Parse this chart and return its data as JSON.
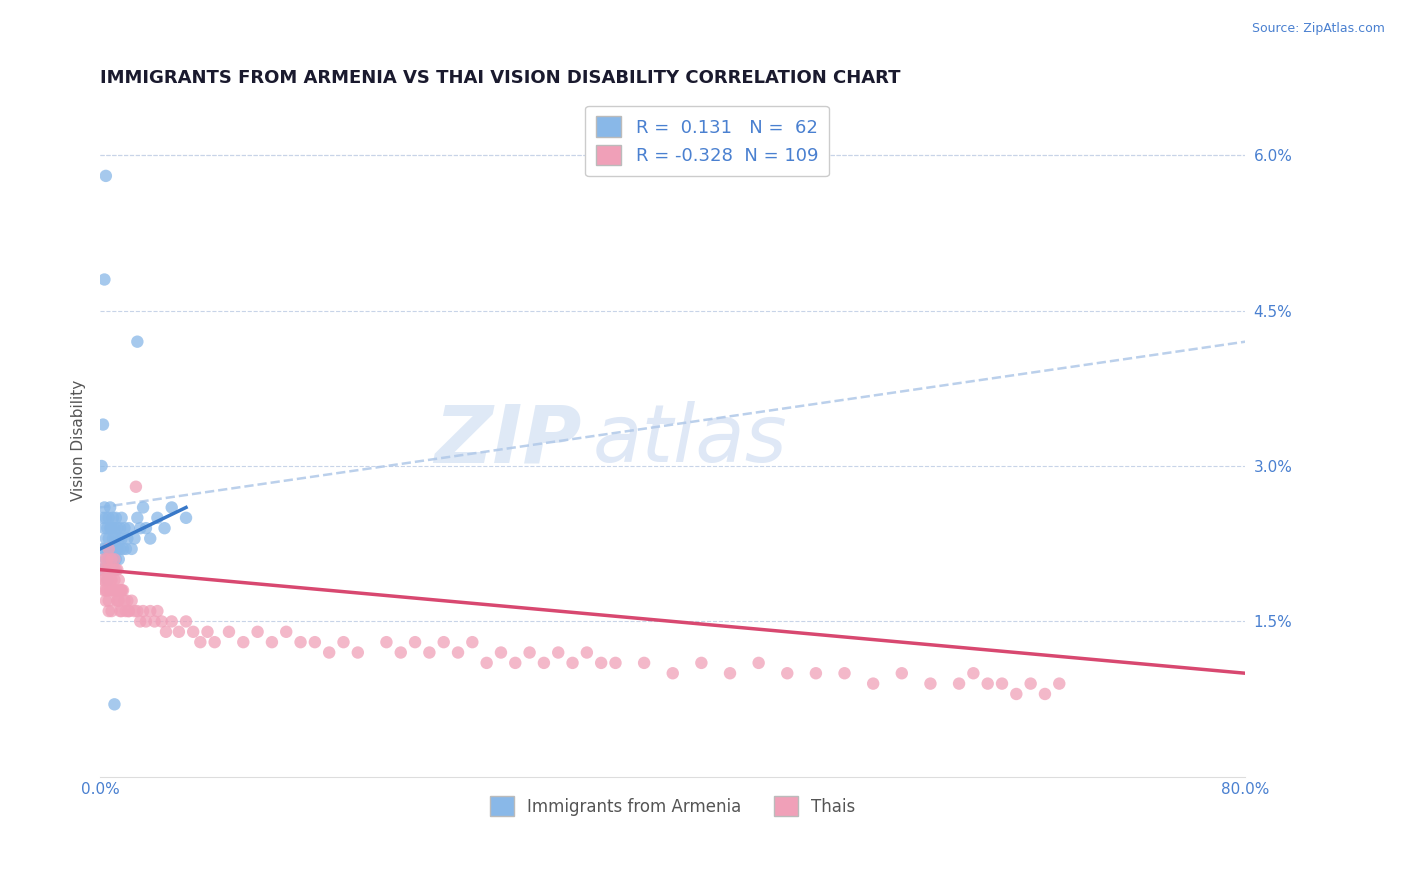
{
  "title": "IMMIGRANTS FROM ARMENIA VS THAI VISION DISABILITY CORRELATION CHART",
  "source": "Source: ZipAtlas.com",
  "ylabel": "Vision Disability",
  "legend_labels": [
    "Immigrants from Armenia",
    "Thais"
  ],
  "legend_r": [
    0.131,
    -0.328
  ],
  "legend_n": [
    62,
    109
  ],
  "armenia_color": "#89b8e8",
  "thai_color": "#f0a0b8",
  "armenia_line_color": "#3878c8",
  "thai_line_color": "#d84870",
  "dashed_line_color": "#b0c8e8",
  "xlim": [
    0.0,
    0.8
  ],
  "ylim": [
    0.0,
    0.065
  ],
  "yticks": [
    0.015,
    0.03,
    0.045,
    0.06
  ],
  "ytick_labels": [
    "1.5%",
    "3.0%",
    "4.5%",
    "6.0%"
  ],
  "watermark": "ZIP atlas",
  "title_fontsize": 13,
  "axis_label_fontsize": 11,
  "tick_fontsize": 11,
  "background_color": "#ffffff",
  "grid_color": "#c8d4e8",
  "armenia_scatter_x": [
    0.001,
    0.002,
    0.002,
    0.003,
    0.003,
    0.003,
    0.004,
    0.004,
    0.004,
    0.005,
    0.005,
    0.005,
    0.005,
    0.006,
    0.006,
    0.006,
    0.007,
    0.007,
    0.007,
    0.007,
    0.008,
    0.008,
    0.008,
    0.009,
    0.009,
    0.009,
    0.01,
    0.01,
    0.01,
    0.011,
    0.011,
    0.011,
    0.012,
    0.012,
    0.013,
    0.013,
    0.014,
    0.014,
    0.015,
    0.015,
    0.016,
    0.017,
    0.018,
    0.019,
    0.02,
    0.022,
    0.024,
    0.026,
    0.028,
    0.03,
    0.032,
    0.035,
    0.04,
    0.045,
    0.05,
    0.06,
    0.001,
    0.002,
    0.003,
    0.004,
    0.026,
    0.01
  ],
  "armenia_scatter_y": [
    0.02,
    0.022,
    0.025,
    0.024,
    0.022,
    0.026,
    0.023,
    0.021,
    0.025,
    0.022,
    0.02,
    0.024,
    0.019,
    0.023,
    0.021,
    0.025,
    0.022,
    0.02,
    0.024,
    0.026,
    0.022,
    0.02,
    0.024,
    0.023,
    0.021,
    0.025,
    0.022,
    0.02,
    0.024,
    0.023,
    0.021,
    0.025,
    0.022,
    0.024,
    0.023,
    0.021,
    0.022,
    0.024,
    0.023,
    0.025,
    0.022,
    0.024,
    0.022,
    0.023,
    0.024,
    0.022,
    0.023,
    0.025,
    0.024,
    0.026,
    0.024,
    0.023,
    0.025,
    0.024,
    0.026,
    0.025,
    0.03,
    0.034,
    0.048,
    0.058,
    0.042,
    0.007
  ],
  "thai_scatter_x": [
    0.001,
    0.002,
    0.003,
    0.003,
    0.004,
    0.004,
    0.005,
    0.005,
    0.006,
    0.006,
    0.006,
    0.007,
    0.007,
    0.008,
    0.008,
    0.009,
    0.009,
    0.01,
    0.01,
    0.011,
    0.011,
    0.012,
    0.012,
    0.013,
    0.013,
    0.014,
    0.014,
    0.015,
    0.015,
    0.016,
    0.017,
    0.018,
    0.019,
    0.02,
    0.022,
    0.024,
    0.026,
    0.028,
    0.03,
    0.032,
    0.035,
    0.038,
    0.04,
    0.043,
    0.046,
    0.05,
    0.055,
    0.06,
    0.065,
    0.07,
    0.075,
    0.08,
    0.09,
    0.1,
    0.11,
    0.12,
    0.13,
    0.14,
    0.15,
    0.16,
    0.17,
    0.18,
    0.2,
    0.21,
    0.22,
    0.23,
    0.24,
    0.25,
    0.26,
    0.27,
    0.28,
    0.29,
    0.3,
    0.31,
    0.32,
    0.33,
    0.34,
    0.35,
    0.36,
    0.38,
    0.4,
    0.42,
    0.44,
    0.46,
    0.48,
    0.5,
    0.52,
    0.54,
    0.56,
    0.58,
    0.6,
    0.61,
    0.62,
    0.63,
    0.64,
    0.65,
    0.66,
    0.67,
    0.003,
    0.004,
    0.005,
    0.006,
    0.007,
    0.008,
    0.01,
    0.012,
    0.015,
    0.02,
    0.025
  ],
  "thai_scatter_y": [
    0.02,
    0.019,
    0.021,
    0.018,
    0.02,
    0.017,
    0.021,
    0.018,
    0.02,
    0.022,
    0.016,
    0.02,
    0.018,
    0.021,
    0.019,
    0.02,
    0.018,
    0.021,
    0.019,
    0.02,
    0.018,
    0.02,
    0.017,
    0.019,
    0.017,
    0.018,
    0.016,
    0.018,
    0.016,
    0.018,
    0.017,
    0.016,
    0.017,
    0.016,
    0.017,
    0.016,
    0.016,
    0.015,
    0.016,
    0.015,
    0.016,
    0.015,
    0.016,
    0.015,
    0.014,
    0.015,
    0.014,
    0.015,
    0.014,
    0.013,
    0.014,
    0.013,
    0.014,
    0.013,
    0.014,
    0.013,
    0.014,
    0.013,
    0.013,
    0.012,
    0.013,
    0.012,
    0.013,
    0.012,
    0.013,
    0.012,
    0.013,
    0.012,
    0.013,
    0.011,
    0.012,
    0.011,
    0.012,
    0.011,
    0.012,
    0.011,
    0.012,
    0.011,
    0.011,
    0.011,
    0.01,
    0.011,
    0.01,
    0.011,
    0.01,
    0.01,
    0.01,
    0.009,
    0.01,
    0.009,
    0.009,
    0.01,
    0.009,
    0.009,
    0.008,
    0.009,
    0.008,
    0.009,
    0.019,
    0.018,
    0.019,
    0.017,
    0.019,
    0.016,
    0.018,
    0.017,
    0.018,
    0.016,
    0.028
  ],
  "armenia_line_x": [
    0.0,
    0.06
  ],
  "armenia_line_y": [
    0.022,
    0.026
  ],
  "thai_line_x": [
    0.0,
    0.8
  ],
  "thai_line_y": [
    0.02,
    0.01
  ],
  "dashed_line_x": [
    0.0,
    0.8
  ],
  "dashed_line_y": [
    0.026,
    0.042
  ]
}
